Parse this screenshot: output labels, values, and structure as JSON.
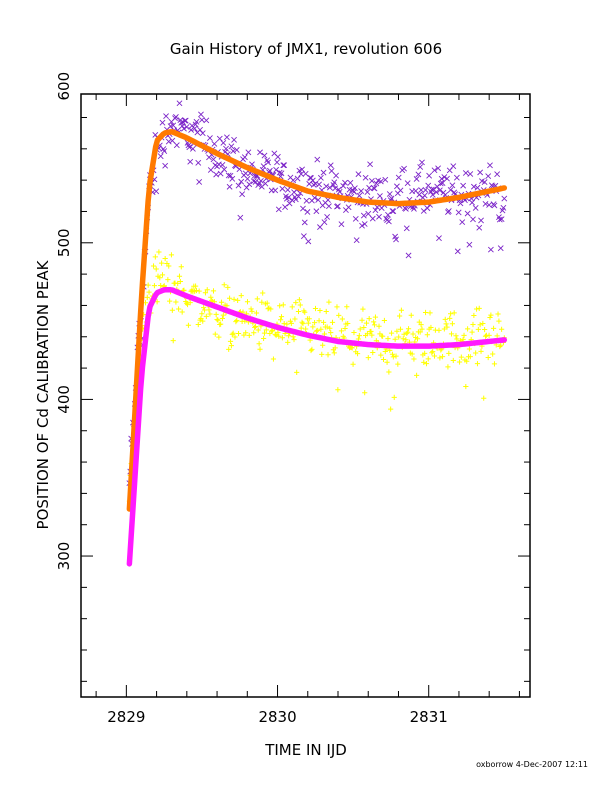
{
  "chart_data": {
    "type": "scatter",
    "title": "Gain History of JMX1, revolution 606",
    "xlabel": "TIME IN IJD",
    "ylabel": "POSITION OF Cd CALIBRATION PEAK",
    "xlim": [
      2828.7,
      2831.67
    ],
    "ylim": [
      210,
      595
    ],
    "xticks": [
      2829,
      2830,
      2831
    ],
    "xtick_labels": [
      "2829",
      "2830",
      "2831"
    ],
    "yticks": [
      300,
      400,
      500,
      600
    ],
    "ytick_labels": [
      "300",
      "400",
      "500",
      "600"
    ],
    "grid": false,
    "legend": "none",
    "series": [
      {
        "marker": "x",
        "color": "#7b24c8",
        "role": "measured points, upper band",
        "envelope": {
          "x": [
            2829.02,
            2829.1,
            2829.15,
            2829.2,
            2829.3,
            2829.5,
            2829.8,
            2830.2,
            2830.6,
            2831.0,
            2831.5
          ],
          "y": [
            345,
            460,
            530,
            560,
            575,
            565,
            545,
            535,
            528,
            532,
            532
          ]
        },
        "spread": 12
      },
      {
        "marker": "+",
        "color": "#ffff00",
        "role": "measured points, lower band",
        "envelope": {
          "x": [
            2829.02,
            2829.1,
            2829.15,
            2829.2,
            2829.3,
            2829.5,
            2829.8,
            2830.2,
            2830.6,
            2831.0,
            2831.5
          ],
          "y": [
            330,
            440,
            470,
            478,
            474,
            460,
            450,
            443,
            438,
            438,
            440
          ]
        },
        "spread": 13
      },
      {
        "marker": "fit",
        "color": "#ff7a00",
        "role": "fit curve, upper band",
        "x": [
          2829.02,
          2829.05,
          2829.1,
          2829.15,
          2829.2,
          2829.25,
          2829.3,
          2829.4,
          2829.6,
          2829.8,
          2830.0,
          2830.2,
          2830.4,
          2830.6,
          2830.8,
          2831.0,
          2831.2,
          2831.5
        ],
        "y": [
          330,
          380,
          465,
          535,
          565,
          570,
          571,
          567,
          557,
          548,
          540,
          533,
          529,
          526,
          525,
          526,
          529,
          535
        ]
      },
      {
        "marker": "fit",
        "color": "#ff1aff",
        "role": "fit curve, lower band",
        "x": [
          2829.02,
          2829.05,
          2829.1,
          2829.15,
          2829.2,
          2829.25,
          2829.3,
          2829.4,
          2829.6,
          2829.8,
          2830.0,
          2830.2,
          2830.4,
          2830.6,
          2830.8,
          2831.0,
          2831.2,
          2831.5
        ],
        "y": [
          295,
          340,
          415,
          458,
          468,
          470,
          470,
          466,
          459,
          452,
          446,
          441,
          437,
          435,
          434,
          434,
          435,
          438
        ]
      }
    ]
  },
  "footer": {
    "credit": "oxborrow  4-Dec-2007 12:11"
  }
}
